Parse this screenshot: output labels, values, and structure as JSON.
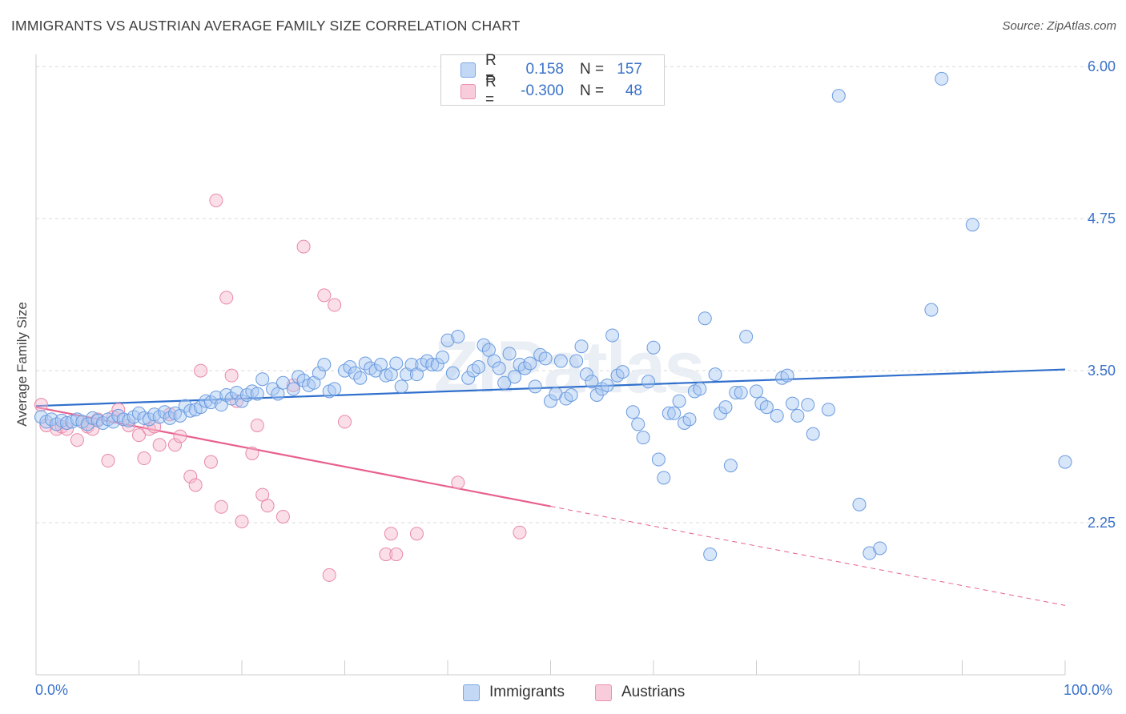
{
  "title": "IMMIGRANTS VS AUSTRIAN AVERAGE FAMILY SIZE CORRELATION CHART",
  "source": "Source: ZipAtlas.com",
  "watermark": "ZIPatlas",
  "legend": {
    "rows": [
      {
        "label": "R =",
        "r": "0.158",
        "n_label": "N =",
        "n": "157",
        "color": "#a9c8f2"
      },
      {
        "label": "R =",
        "r": "-0.300",
        "n_label": "N =",
        "n": "48",
        "color": "#f6b8cc"
      }
    ]
  },
  "bottom_legend": [
    {
      "name": "Immigrants",
      "color": "#a9c8f2"
    },
    {
      "name": "Austrians",
      "color": "#f6b8cc"
    }
  ],
  "chart_data": {
    "type": "scatter",
    "title": "IMMIGRANTS VS AUSTRIAN AVERAGE FAMILY SIZE CORRELATION CHART",
    "xlabel": "",
    "ylabel": "Average Family Size",
    "xlim": [
      0,
      100
    ],
    "ylim": [
      1.0,
      6.1
    ],
    "x_tick_labels": [
      "0.0%",
      "100.0%"
    ],
    "y_ticks": [
      2.25,
      3.5,
      4.75,
      6.0
    ],
    "y_tick_labels": [
      "2.25",
      "3.50",
      "4.75",
      "6.00"
    ],
    "grid": true,
    "legend_position": "top-center",
    "series": [
      {
        "name": "Immigrants",
        "color": "#a9c8f2",
        "stroke": "#6a9be0",
        "trend": {
          "x": [
            0,
            100
          ],
          "y": [
            3.21,
            3.51
          ],
          "color": "#2f6fcc",
          "dashed_from": null
        },
        "points": [
          [
            0.5,
            3.12
          ],
          [
            1,
            3.08
          ],
          [
            1.5,
            3.1
          ],
          [
            2,
            3.06
          ],
          [
            2.5,
            3.09
          ],
          [
            3,
            3.07
          ],
          [
            3.5,
            3.08
          ],
          [
            4,
            3.1
          ],
          [
            4.5,
            3.08
          ],
          [
            5,
            3.06
          ],
          [
            5.5,
            3.11
          ],
          [
            6,
            3.09
          ],
          [
            6.5,
            3.07
          ],
          [
            7,
            3.1
          ],
          [
            7.5,
            3.08
          ],
          [
            8,
            3.13
          ],
          [
            8.5,
            3.1
          ],
          [
            9,
            3.09
          ],
          [
            9.5,
            3.12
          ],
          [
            10,
            3.15
          ],
          [
            10.5,
            3.11
          ],
          [
            11,
            3.1
          ],
          [
            11.5,
            3.14
          ],
          [
            12,
            3.12
          ],
          [
            12.5,
            3.16
          ],
          [
            13,
            3.11
          ],
          [
            13.5,
            3.15
          ],
          [
            14,
            3.13
          ],
          [
            14.5,
            3.21
          ],
          [
            15,
            3.17
          ],
          [
            15.5,
            3.18
          ],
          [
            16,
            3.2
          ],
          [
            16.5,
            3.25
          ],
          [
            17,
            3.24
          ],
          [
            17.5,
            3.28
          ],
          [
            18,
            3.22
          ],
          [
            18.5,
            3.3
          ],
          [
            19,
            3.27
          ],
          [
            19.5,
            3.32
          ],
          [
            20,
            3.25
          ],
          [
            20.5,
            3.3
          ],
          [
            21,
            3.33
          ],
          [
            21.5,
            3.31
          ],
          [
            22,
            3.43
          ],
          [
            23,
            3.35
          ],
          [
            23.5,
            3.31
          ],
          [
            24,
            3.4
          ],
          [
            25,
            3.35
          ],
          [
            25.5,
            3.45
          ],
          [
            26,
            3.42
          ],
          [
            26.5,
            3.38
          ],
          [
            27,
            3.4
          ],
          [
            27.5,
            3.48
          ],
          [
            28,
            3.55
          ],
          [
            28.5,
            3.33
          ],
          [
            29,
            3.35
          ],
          [
            30,
            3.5
          ],
          [
            30.5,
            3.53
          ],
          [
            31,
            3.48
          ],
          [
            31.5,
            3.44
          ],
          [
            32,
            3.56
          ],
          [
            32.5,
            3.52
          ],
          [
            33,
            3.5
          ],
          [
            33.5,
            3.55
          ],
          [
            34,
            3.46
          ],
          [
            34.5,
            3.47
          ],
          [
            35,
            3.56
          ],
          [
            35.5,
            3.37
          ],
          [
            36,
            3.47
          ],
          [
            36.5,
            3.55
          ],
          [
            37,
            3.47
          ],
          [
            37.5,
            3.55
          ],
          [
            38,
            3.58
          ],
          [
            38.5,
            3.55
          ],
          [
            39,
            3.55
          ],
          [
            39.5,
            3.61
          ],
          [
            40,
            3.75
          ],
          [
            40.5,
            3.48
          ],
          [
            41,
            3.78
          ],
          [
            42,
            3.44
          ],
          [
            42.5,
            3.5
          ],
          [
            43,
            3.53
          ],
          [
            43.5,
            3.71
          ],
          [
            44,
            3.67
          ],
          [
            44.5,
            3.58
          ],
          [
            45,
            3.52
          ],
          [
            45.5,
            3.4
          ],
          [
            46,
            3.64
          ],
          [
            46.5,
            3.45
          ],
          [
            47,
            3.55
          ],
          [
            47.5,
            3.52
          ],
          [
            48,
            3.56
          ],
          [
            48.5,
            3.37
          ],
          [
            49,
            3.63
          ],
          [
            49.5,
            3.6
          ],
          [
            50,
            3.25
          ],
          [
            50.5,
            3.31
          ],
          [
            51,
            3.58
          ],
          [
            51.5,
            3.27
          ],
          [
            52,
            3.3
          ],
          [
            52.5,
            3.58
          ],
          [
            53,
            3.7
          ],
          [
            53.5,
            3.47
          ],
          [
            54,
            3.41
          ],
          [
            54.5,
            3.3
          ],
          [
            55,
            3.35
          ],
          [
            55.5,
            3.38
          ],
          [
            56,
            3.79
          ],
          [
            56.5,
            3.46
          ],
          [
            57,
            3.49
          ],
          [
            58,
            3.16
          ],
          [
            58.5,
            3.06
          ],
          [
            59,
            2.95
          ],
          [
            59.5,
            3.41
          ],
          [
            60,
            3.69
          ],
          [
            60.5,
            2.77
          ],
          [
            61,
            2.62
          ],
          [
            61.5,
            3.15
          ],
          [
            62,
            3.15
          ],
          [
            62.5,
            3.25
          ],
          [
            63,
            3.07
          ],
          [
            63.5,
            3.1
          ],
          [
            64,
            3.33
          ],
          [
            64.5,
            3.35
          ],
          [
            65,
            3.93
          ],
          [
            65.5,
            1.99
          ],
          [
            66,
            3.47
          ],
          [
            66.5,
            3.15
          ],
          [
            67,
            3.2
          ],
          [
            67.5,
            2.72
          ],
          [
            68,
            3.32
          ],
          [
            68.5,
            3.32
          ],
          [
            69,
            3.78
          ],
          [
            70,
            3.33
          ],
          [
            70.5,
            3.23
          ],
          [
            71,
            3.2
          ],
          [
            72,
            3.13
          ],
          [
            72.5,
            3.44
          ],
          [
            73,
            3.46
          ],
          [
            73.5,
            3.23
          ],
          [
            74,
            3.13
          ],
          [
            75,
            3.22
          ],
          [
            75.5,
            2.98
          ],
          [
            77,
            3.18
          ],
          [
            78,
            5.76
          ],
          [
            80,
            2.4
          ],
          [
            81,
            2.0
          ],
          [
            82,
            2.04
          ],
          [
            87,
            4.0
          ],
          [
            88,
            5.9
          ],
          [
            91,
            4.7
          ],
          [
            100,
            2.75
          ]
        ]
      },
      {
        "name": "Austrians",
        "color": "#f6b8cc",
        "stroke": "#e888a8",
        "trend": {
          "x": [
            0,
            100
          ],
          "y": [
            3.2,
            1.57
          ],
          "color": "#e8608f",
          "dashed_from": 50
        },
        "points": [
          [
            0.5,
            3.22
          ],
          [
            1,
            3.05
          ],
          [
            2,
            3.02
          ],
          [
            2.5,
            3.04
          ],
          [
            3,
            3.02
          ],
          [
            4,
            2.93
          ],
          [
            4.5,
            3.08
          ],
          [
            5,
            3.04
          ],
          [
            5.5,
            3.02
          ],
          [
            6,
            3.1
          ],
          [
            7,
            2.76
          ],
          [
            7.5,
            3.12
          ],
          [
            8,
            3.18
          ],
          [
            9,
            3.05
          ],
          [
            10,
            2.97
          ],
          [
            10.5,
            2.78
          ],
          [
            11,
            3.02
          ],
          [
            11.5,
            3.04
          ],
          [
            12,
            2.89
          ],
          [
            13,
            3.14
          ],
          [
            13.5,
            2.89
          ],
          [
            14,
            2.96
          ],
          [
            15,
            2.63
          ],
          [
            15.5,
            2.56
          ],
          [
            16,
            3.5
          ],
          [
            17,
            2.75
          ],
          [
            17.5,
            4.9
          ],
          [
            18,
            2.38
          ],
          [
            18.5,
            4.1
          ],
          [
            19,
            3.46
          ],
          [
            19.5,
            3.25
          ],
          [
            20,
            2.26
          ],
          [
            21,
            2.82
          ],
          [
            21.5,
            3.05
          ],
          [
            22,
            2.48
          ],
          [
            22.5,
            2.39
          ],
          [
            24,
            2.3
          ],
          [
            25,
            3.38
          ],
          [
            26,
            4.52
          ],
          [
            28,
            4.12
          ],
          [
            28.5,
            1.82
          ],
          [
            29,
            4.04
          ],
          [
            30,
            3.08
          ],
          [
            34,
            1.99
          ],
          [
            34.5,
            2.16
          ],
          [
            35,
            1.99
          ],
          [
            37,
            2.16
          ],
          [
            41,
            2.58
          ],
          [
            47,
            2.17
          ]
        ]
      }
    ]
  }
}
